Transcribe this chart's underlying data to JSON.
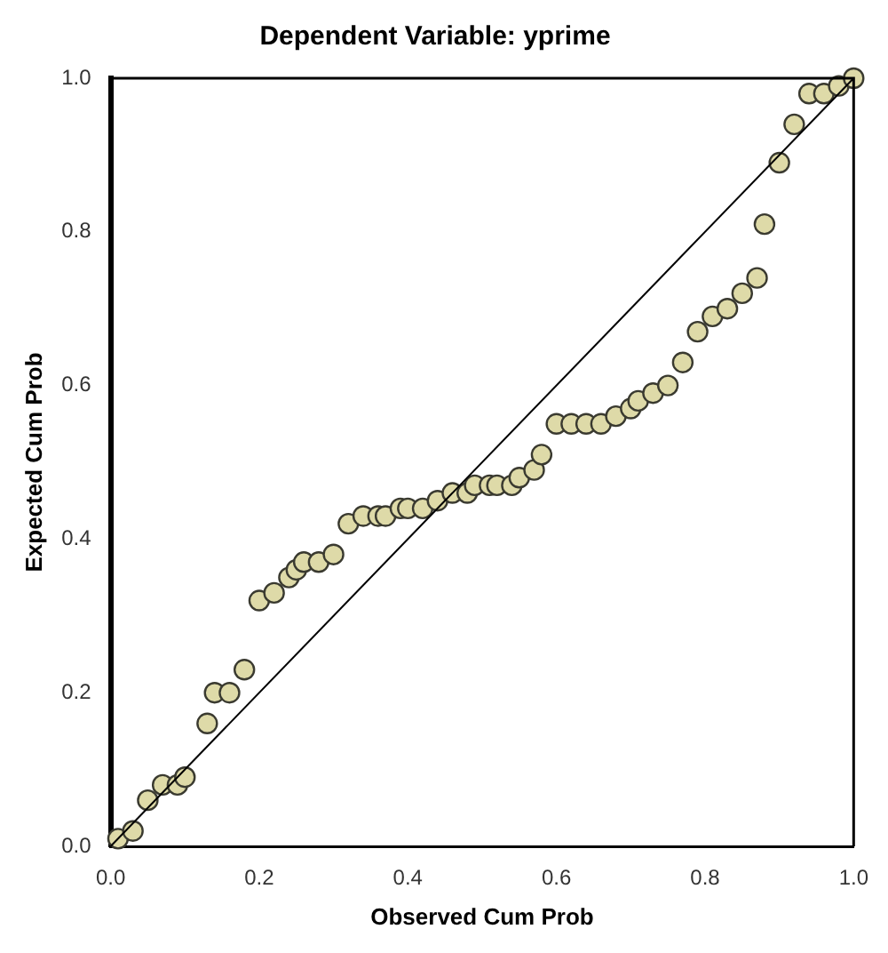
{
  "chart_data": {
    "type": "scatter",
    "title": "Dependent Variable: yprime",
    "xlabel": "Observed Cum Prob",
    "ylabel": "Expected Cum Prob",
    "xlim": [
      0,
      1
    ],
    "ylim": [
      0,
      1
    ],
    "xticks": [
      {
        "value": 0,
        "label": "0.0"
      },
      0.2,
      0.4,
      0.6,
      0.8,
      {
        "value": 1,
        "label": "1.0"
      }
    ],
    "yticks": [
      {
        "value": 0,
        "label": "0.0"
      },
      0.2,
      0.4,
      0.6,
      0.8,
      {
        "value": 1,
        "label": "1.0"
      }
    ],
    "grid": false,
    "legend": false,
    "marker": "circle",
    "series": [
      {
        "color": "#dedaa8",
        "x": [
          0.01,
          0.03,
          0.05,
          0.07,
          0.09,
          0.1,
          0.13,
          0.14,
          0.16,
          0.18,
          0.2,
          0.22,
          0.24,
          0.25,
          0.26,
          0.28,
          0.3,
          0.32,
          0.34,
          0.36,
          0.37,
          0.39,
          0.4,
          0.42,
          0.44,
          0.46,
          0.48,
          0.49,
          0.51,
          0.52,
          0.54,
          0.55,
          0.57,
          0.58,
          0.6,
          0.62,
          0.64,
          0.66,
          0.68,
          0.7,
          0.71,
          0.73,
          0.75,
          0.77,
          0.79,
          0.81,
          0.83,
          0.85,
          0.87,
          0.88,
          0.9,
          0.92,
          0.94,
          0.96,
          0.98,
          1.0
        ],
        "values": [
          0.01,
          0.02,
          0.06,
          0.08,
          0.08,
          0.09,
          0.16,
          0.2,
          0.2,
          0.23,
          0.32,
          0.33,
          0.35,
          0.36,
          0.37,
          0.37,
          0.38,
          0.42,
          0.43,
          0.43,
          0.43,
          0.44,
          0.44,
          0.44,
          0.45,
          0.46,
          0.46,
          0.47,
          0.47,
          0.47,
          0.47,
          0.48,
          0.49,
          0.51,
          0.55,
          0.55,
          0.55,
          0.55,
          0.56,
          0.57,
          0.58,
          0.59,
          0.6,
          0.63,
          0.67,
          0.69,
          0.7,
          0.72,
          0.74,
          0.81,
          0.89,
          0.94,
          0.98,
          0.98,
          0.99,
          1.0
        ]
      },
      {
        "type": "line",
        "color": "#000000",
        "line_style": "solid",
        "marker": "none",
        "x": [
          0,
          1
        ],
        "values": [
          0,
          1
        ]
      }
    ]
  }
}
